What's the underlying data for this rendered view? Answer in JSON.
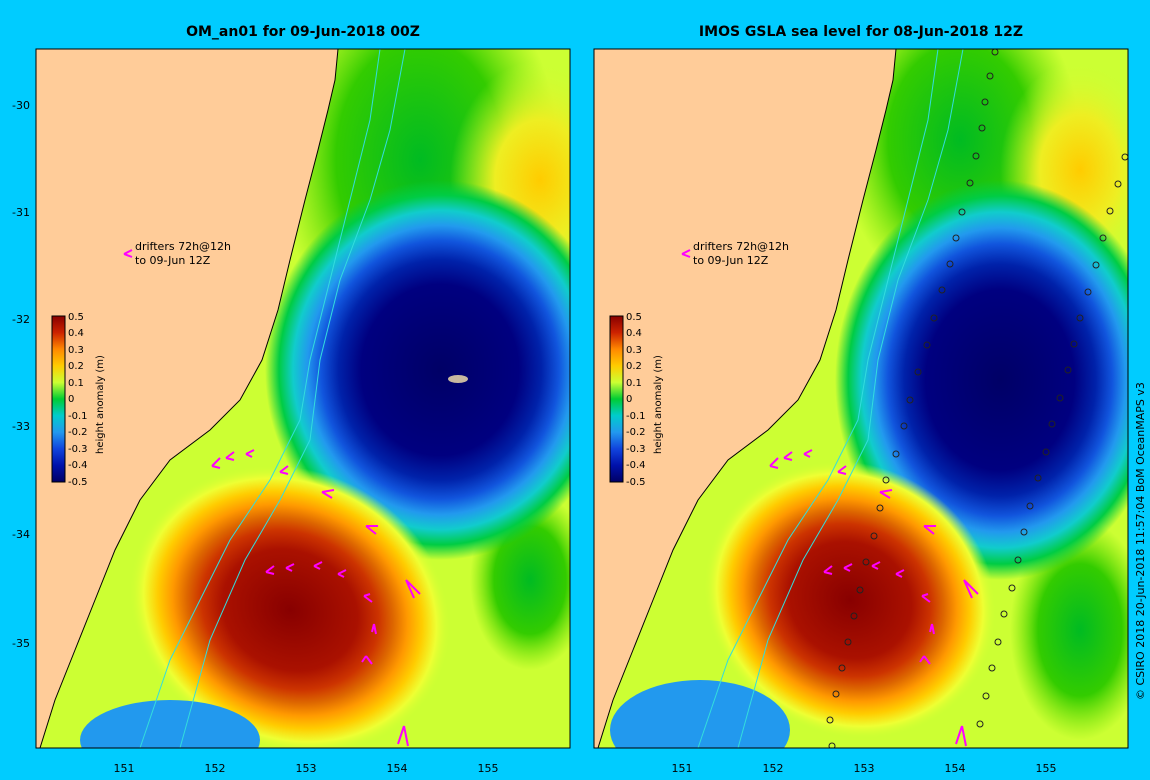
{
  "panels": [
    {
      "title": "OM_an01 for 09-Jun-2018 00Z",
      "legend_note": {
        "line1": "drifters 72h@12h",
        "line2": "to 09-Jun 12Z"
      },
      "colorbar": {
        "label": "height anomaly (m)",
        "ticks": [
          "0.5",
          "0.4",
          "0.3",
          "0.2",
          "0.1",
          "0",
          "-0.1",
          "-0.2",
          "-0.3",
          "-0.4",
          "-0.5"
        ]
      },
      "lat_ticks": [
        "-30",
        "-31",
        "-32",
        "-33",
        "-34",
        "-35"
      ],
      "lon_ticks": [
        "151",
        "152",
        "153",
        "154",
        "155"
      ]
    },
    {
      "title": "IMOS GSLA sea level  for 08-Jun-2018 12Z",
      "legend_note": {
        "line1": "drifters 72h@12h",
        "line2": "to 09-Jun 12Z"
      },
      "colorbar": {
        "label": "height anomaly (m)",
        "ticks": [
          "0.5",
          "0.4",
          "0.3",
          "0.2",
          "0.1",
          "0",
          "-0.1",
          "-0.2",
          "-0.3",
          "-0.4",
          "-0.5"
        ]
      },
      "lat_ticks": [
        "-30",
        "-31",
        "-32",
        "-33",
        "-34",
        "-35"
      ],
      "lon_ticks": [
        "151",
        "152",
        "153",
        "154",
        "155"
      ]
    }
  ],
  "credit": "© CSIRO 2018  20-Jun-2018 11:57:04 BoM OceanMAPS v3",
  "colors": {
    "background": "#00ccff",
    "land": "#ffcc99",
    "drifter_arrow": "#ff00ff",
    "contour": "#33dddd"
  }
}
